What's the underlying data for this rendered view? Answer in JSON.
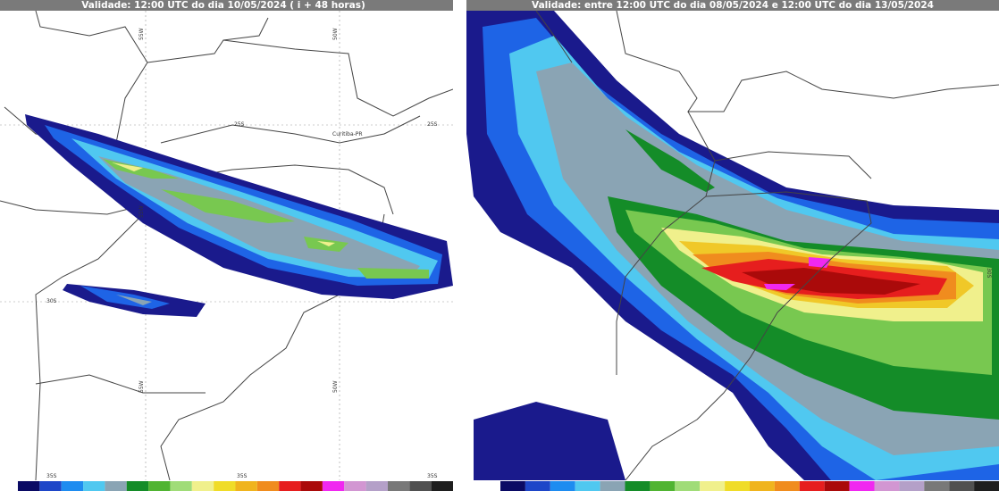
{
  "left": {
    "title": "Validade: 12:00 UTC do dia 10/05/2024 ( i + 48 horas)",
    "labels": [
      "55W",
      "50W",
      "25S",
      "Curitiba-PR",
      "30S",
      "35S"
    ]
  },
  "right": {
    "title": "Validade: entre 12:00 UTC do dia 08/05/2024 e 12:00 UTC do dia 13/05/2024",
    "labels": [
      "30S"
    ]
  }
}
